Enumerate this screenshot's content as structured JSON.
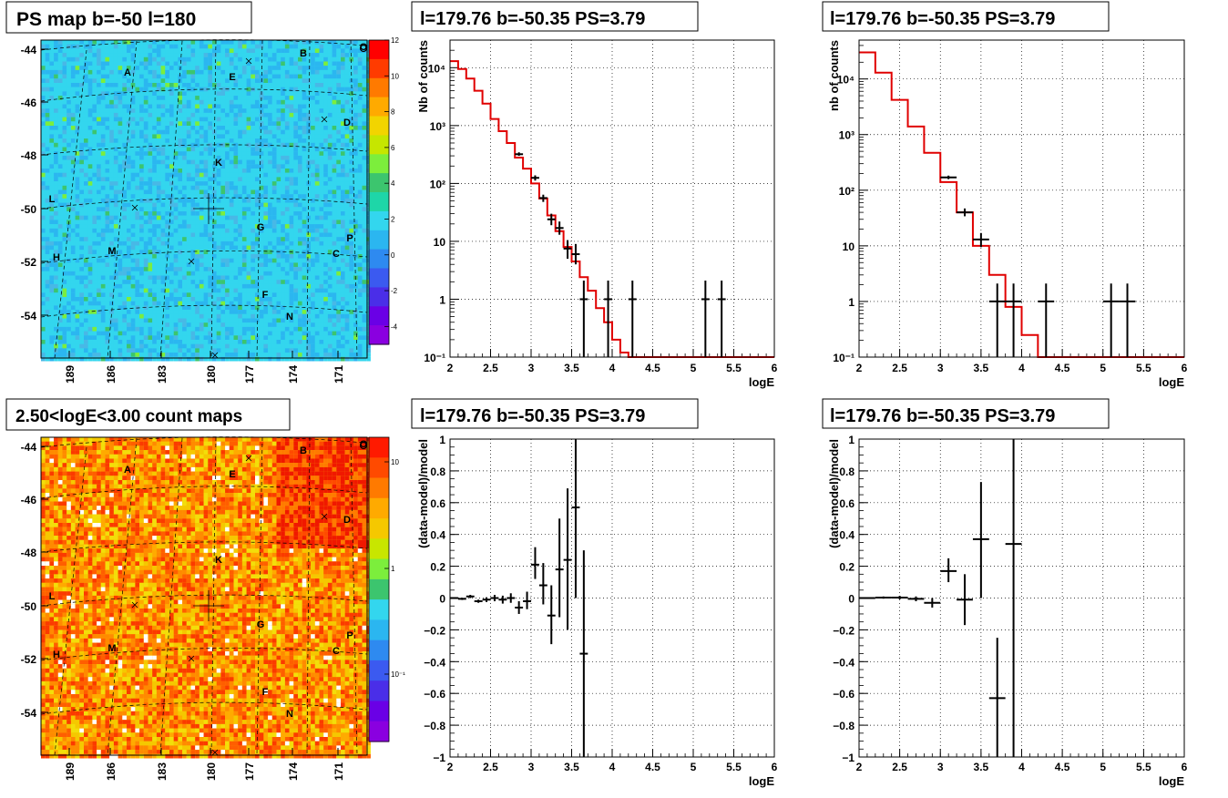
{
  "colors": {
    "spectrum_model": "#e00000",
    "data": "#000000",
    "background": "#ffffff"
  },
  "map_panels": [
    {
      "title": "PS map b=-50 l=180",
      "y_ticks": [
        "-44",
        "-46",
        "-48",
        "-50",
        "-52",
        "-54"
      ],
      "x_ticks": [
        "189",
        "186",
        "183",
        "180",
        "177",
        "174",
        "171"
      ],
      "z_ticks": [
        "12",
        "10",
        "8",
        "6",
        "4",
        "2",
        "0",
        "-2",
        "-4"
      ],
      "palette": "ps-map",
      "z_scale": "linear",
      "z_range": [
        -5,
        12
      ],
      "source_labels": [
        "A",
        "B",
        "C",
        "D",
        "E",
        "F",
        "G",
        "H",
        "K",
        "L",
        "M",
        "N",
        "O",
        "P"
      ]
    },
    {
      "title": "2.50<logE<3.00 count maps",
      "y_ticks": [
        "-44",
        "-46",
        "-48",
        "-50",
        "-52",
        "-54"
      ],
      "x_ticks": [
        "189",
        "186",
        "183",
        "180",
        "177",
        "174",
        "171"
      ],
      "z_ticks": [
        "10",
        "1",
        "10⁻¹"
      ],
      "palette": "count-map",
      "z_scale": "log",
      "source_labels": [
        "A",
        "B",
        "C",
        "D",
        "E",
        "F",
        "G",
        "H",
        "K",
        "L",
        "M",
        "N",
        "O",
        "P"
      ]
    }
  ],
  "chart_data": [
    {
      "type": "line",
      "title": "l=179.76 b=-50.35 PS=3.79",
      "xlabel": "logE",
      "ylabel": "Nb of counts",
      "log_y": true,
      "xlim": [
        2,
        6
      ],
      "ylim": [
        0.1,
        30000
      ],
      "x_ticks": [
        "2",
        "2.5",
        "3",
        "3.5",
        "4",
        "4.5",
        "5",
        "5.5",
        "6"
      ],
      "y_ticks": [
        "10⁻¹",
        "1",
        "10",
        "10²",
        "10³",
        "10⁴"
      ],
      "grid": true,
      "model_steps": [
        {
          "x0": 2.0,
          "x1": 2.1,
          "y": 13000
        },
        {
          "x0": 2.1,
          "x1": 2.2,
          "y": 9500
        },
        {
          "x0": 2.2,
          "x1": 2.3,
          "y": 6500
        },
        {
          "x0": 2.3,
          "x1": 2.4,
          "y": 4000
        },
        {
          "x0": 2.4,
          "x1": 2.5,
          "y": 2400
        },
        {
          "x0": 2.5,
          "x1": 2.6,
          "y": 1300
        },
        {
          "x0": 2.6,
          "x1": 2.7,
          "y": 800
        },
        {
          "x0": 2.7,
          "x1": 2.8,
          "y": 500
        },
        {
          "x0": 2.8,
          "x1": 2.9,
          "y": 280
        },
        {
          "x0": 2.9,
          "x1": 3.0,
          "y": 180
        },
        {
          "x0": 3.0,
          "x1": 3.1,
          "y": 100
        },
        {
          "x0": 3.1,
          "x1": 3.2,
          "y": 55
        },
        {
          "x0": 3.2,
          "x1": 3.3,
          "y": 28
        },
        {
          "x0": 3.3,
          "x1": 3.4,
          "y": 15
        },
        {
          "x0": 3.4,
          "x1": 3.5,
          "y": 8
        },
        {
          "x0": 3.5,
          "x1": 3.6,
          "y": 4.5
        },
        {
          "x0": 3.6,
          "x1": 3.7,
          "y": 2.4
        },
        {
          "x0": 3.7,
          "x1": 3.8,
          "y": 1.4
        },
        {
          "x0": 3.8,
          "x1": 3.9,
          "y": 0.7
        },
        {
          "x0": 3.9,
          "x1": 4.0,
          "y": 0.4
        },
        {
          "x0": 4.0,
          "x1": 4.1,
          "y": 0.2
        },
        {
          "x0": 4.1,
          "x1": 4.2,
          "y": 0.12
        },
        {
          "x0": 4.2,
          "x1": 6.0,
          "y": 0.1
        }
      ],
      "data_points": [
        {
          "x": 2.85,
          "y": 320,
          "xerr": 0.05,
          "ylo": 300,
          "yhi": 345
        },
        {
          "x": 3.05,
          "y": 125,
          "xerr": 0.05,
          "ylo": 112,
          "yhi": 138
        },
        {
          "x": 3.15,
          "y": 56,
          "xerr": 0.05,
          "ylo": 48,
          "yhi": 64
        },
        {
          "x": 3.25,
          "y": 24,
          "xerr": 0.05,
          "ylo": 19,
          "yhi": 30
        },
        {
          "x": 3.35,
          "y": 17,
          "xerr": 0.05,
          "ylo": 13,
          "yhi": 22
        },
        {
          "x": 3.45,
          "y": 7.5,
          "xerr": 0.05,
          "ylo": 5,
          "yhi": 10.5
        },
        {
          "x": 3.55,
          "y": 6,
          "xerr": 0.05,
          "ylo": 4,
          "yhi": 9
        },
        {
          "x": 3.65,
          "y": 1,
          "xerr": 0.05,
          "ylo": 0.1,
          "yhi": 2.1
        },
        {
          "x": 3.95,
          "y": 1,
          "xerr": 0.05,
          "ylo": 0.1,
          "yhi": 2.1
        },
        {
          "x": 4.25,
          "y": 1,
          "xerr": 0.05,
          "ylo": 0.1,
          "yhi": 2.1
        },
        {
          "x": 5.15,
          "y": 1,
          "xerr": 0.05,
          "ylo": 0.1,
          "yhi": 2.1
        },
        {
          "x": 5.35,
          "y": 1,
          "xerr": 0.05,
          "ylo": 0.1,
          "yhi": 2.1
        }
      ]
    },
    {
      "type": "line",
      "title": "l=179.76 b=-50.35 PS=3.79",
      "xlabel": "logE",
      "ylabel": "nb of counts",
      "log_y": true,
      "xlim": [
        2,
        6
      ],
      "ylim": [
        0.1,
        50000
      ],
      "x_ticks": [
        "2",
        "2.5",
        "3",
        "3.5",
        "4",
        "4.5",
        "5",
        "5.5",
        "6"
      ],
      "y_ticks": [
        "10⁻¹",
        "1",
        "10",
        "10²",
        "10³",
        "10⁴"
      ],
      "grid": true,
      "model_steps": [
        {
          "x0": 2.0,
          "x1": 2.2,
          "y": 30000
        },
        {
          "x0": 2.2,
          "x1": 2.4,
          "y": 13000
        },
        {
          "x0": 2.4,
          "x1": 2.6,
          "y": 4200
        },
        {
          "x0": 2.6,
          "x1": 2.8,
          "y": 1400
        },
        {
          "x0": 2.8,
          "x1": 3.0,
          "y": 470
        },
        {
          "x0": 3.0,
          "x1": 3.2,
          "y": 140
        },
        {
          "x0": 3.2,
          "x1": 3.4,
          "y": 40
        },
        {
          "x0": 3.4,
          "x1": 3.6,
          "y": 10
        },
        {
          "x0": 3.6,
          "x1": 3.8,
          "y": 3
        },
        {
          "x0": 3.8,
          "x1": 4.0,
          "y": 0.8
        },
        {
          "x0": 4.0,
          "x1": 4.2,
          "y": 0.25
        },
        {
          "x0": 4.2,
          "x1": 6.0,
          "y": 0.1
        }
      ],
      "data_points": [
        {
          "x": 3.1,
          "y": 170,
          "xerr": 0.1,
          "ylo": 158,
          "yhi": 183
        },
        {
          "x": 3.3,
          "y": 40,
          "xerr": 0.1,
          "ylo": 34,
          "yhi": 47
        },
        {
          "x": 3.5,
          "y": 13,
          "xerr": 0.1,
          "ylo": 9.5,
          "yhi": 17
        },
        {
          "x": 3.7,
          "y": 1,
          "xerr": 0.1,
          "ylo": 0.1,
          "yhi": 2.1
        },
        {
          "x": 3.9,
          "y": 1,
          "xerr": 0.1,
          "ylo": 0.1,
          "yhi": 2.1
        },
        {
          "x": 4.3,
          "y": 1,
          "xerr": 0.1,
          "ylo": 0.1,
          "yhi": 2.1
        },
        {
          "x": 5.1,
          "y": 1,
          "xerr": 0.1,
          "ylo": 0.1,
          "yhi": 2.1
        },
        {
          "x": 5.3,
          "y": 1,
          "xerr": 0.1,
          "ylo": 0.1,
          "yhi": 2.1
        }
      ]
    },
    {
      "type": "scatter",
      "title": "l=179.76 b=-50.35 PS=3.79",
      "xlabel": "logE",
      "ylabel": "(data-model)/model",
      "log_y": false,
      "xlim": [
        2,
        6
      ],
      "ylim": [
        -1,
        1
      ],
      "x_ticks": [
        "2",
        "2.5",
        "3",
        "3.5",
        "4",
        "4.5",
        "5",
        "5.5",
        "6"
      ],
      "y_ticks": [
        "−1",
        "−0.8",
        "−0.6",
        "−0.4",
        "−0.2",
        "0",
        "0.2",
        "0.4",
        "0.6",
        "0.8",
        "1"
      ],
      "grid": true,
      "data_points": [
        {
          "x": 2.05,
          "y": 0.0,
          "xerr": 0.05,
          "ylo": -0.005,
          "yhi": 0.005
        },
        {
          "x": 2.15,
          "y": -0.005,
          "xerr": 0.05,
          "ylo": -0.012,
          "yhi": 0.002
        },
        {
          "x": 2.25,
          "y": 0.01,
          "xerr": 0.05,
          "ylo": 0.0,
          "yhi": 0.02
        },
        {
          "x": 2.35,
          "y": -0.02,
          "xerr": 0.05,
          "ylo": -0.03,
          "yhi": -0.01
        },
        {
          "x": 2.45,
          "y": -0.01,
          "xerr": 0.05,
          "ylo": -0.025,
          "yhi": 0.005
        },
        {
          "x": 2.55,
          "y": 0.0,
          "xerr": 0.05,
          "ylo": -0.02,
          "yhi": 0.02
        },
        {
          "x": 2.65,
          "y": -0.01,
          "xerr": 0.05,
          "ylo": -0.035,
          "yhi": 0.015
        },
        {
          "x": 2.75,
          "y": 0.0,
          "xerr": 0.05,
          "ylo": -0.03,
          "yhi": 0.03
        },
        {
          "x": 2.85,
          "y": -0.06,
          "xerr": 0.05,
          "ylo": -0.1,
          "yhi": -0.02
        },
        {
          "x": 2.95,
          "y": -0.02,
          "xerr": 0.05,
          "ylo": -0.07,
          "yhi": 0.04
        },
        {
          "x": 3.05,
          "y": 0.21,
          "xerr": 0.05,
          "ylo": 0.12,
          "yhi": 0.32
        },
        {
          "x": 3.15,
          "y": 0.08,
          "xerr": 0.05,
          "ylo": -0.04,
          "yhi": 0.22
        },
        {
          "x": 3.25,
          "y": -0.11,
          "xerr": 0.05,
          "ylo": -0.29,
          "yhi": 0.08
        },
        {
          "x": 3.35,
          "y": 0.18,
          "xerr": 0.05,
          "ylo": -0.12,
          "yhi": 0.5
        },
        {
          "x": 3.45,
          "y": 0.24,
          "xerr": 0.05,
          "ylo": -0.2,
          "yhi": 0.69
        },
        {
          "x": 3.55,
          "y": 0.57,
          "xerr": 0.05,
          "ylo": 0.0,
          "yhi": 1.0
        },
        {
          "x": 3.65,
          "y": -0.35,
          "xerr": 0.05,
          "ylo": -1.0,
          "yhi": 0.3
        }
      ]
    },
    {
      "type": "scatter",
      "title": "l=179.76 b=-50.35 PS=3.79",
      "xlabel": "logE",
      "ylabel": "(data-model)/model",
      "log_y": false,
      "xlim": [
        2,
        6
      ],
      "ylim": [
        -1,
        1
      ],
      "x_ticks": [
        "2",
        "2.5",
        "3",
        "3.5",
        "4",
        "4.5",
        "5",
        "5.5",
        "6"
      ],
      "y_ticks": [
        "−1",
        "−0.8",
        "−0.6",
        "−0.4",
        "−0.2",
        "0",
        "0.2",
        "0.4",
        "0.6",
        "0.8",
        "1"
      ],
      "grid": true,
      "data_points": [
        {
          "x": 2.1,
          "y": 0.0,
          "xerr": 0.1,
          "ylo": -0.004,
          "yhi": 0.004
        },
        {
          "x": 2.3,
          "y": 0.003,
          "xerr": 0.1,
          "ylo": -0.004,
          "yhi": 0.01
        },
        {
          "x": 2.5,
          "y": 0.003,
          "xerr": 0.1,
          "ylo": -0.008,
          "yhi": 0.014
        },
        {
          "x": 2.7,
          "y": -0.005,
          "xerr": 0.1,
          "ylo": -0.02,
          "yhi": 0.01
        },
        {
          "x": 2.9,
          "y": -0.03,
          "xerr": 0.1,
          "ylo": -0.06,
          "yhi": 0.0
        },
        {
          "x": 3.1,
          "y": 0.17,
          "xerr": 0.1,
          "ylo": 0.1,
          "yhi": 0.25
        },
        {
          "x": 3.3,
          "y": -0.01,
          "xerr": 0.1,
          "ylo": -0.17,
          "yhi": 0.15
        },
        {
          "x": 3.5,
          "y": 0.37,
          "xerr": 0.1,
          "ylo": 0.0,
          "yhi": 0.73
        },
        {
          "x": 3.7,
          "y": -0.63,
          "xerr": 0.1,
          "ylo": -1.0,
          "yhi": -0.25
        },
        {
          "x": 3.9,
          "y": 0.34,
          "xerr": 0.1,
          "ylo": -1.0,
          "yhi": 1.0
        }
      ]
    }
  ]
}
